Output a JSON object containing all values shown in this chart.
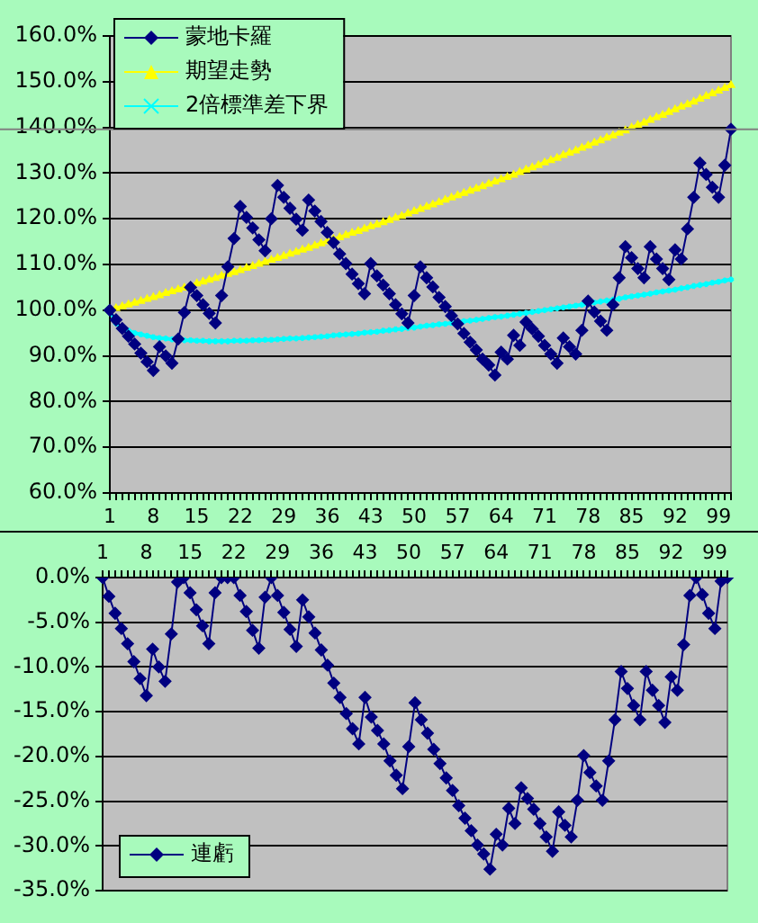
{
  "chart_data": [
    {
      "type": "line",
      "categories": [
        "1",
        null,
        null,
        null,
        null,
        null,
        null,
        "8",
        null,
        null,
        null,
        null,
        null,
        null,
        "15",
        null,
        null,
        null,
        null,
        null,
        null,
        "22",
        null,
        null,
        null,
        null,
        null,
        null,
        "29",
        null,
        null,
        null,
        null,
        null,
        null,
        "36",
        null,
        null,
        null,
        null,
        null,
        null,
        "43",
        null,
        null,
        null,
        null,
        null,
        null,
        "50",
        null,
        null,
        null,
        null,
        null,
        null,
        "57",
        null,
        null,
        null,
        null,
        null,
        null,
        "64",
        null,
        null,
        null,
        null,
        null,
        null,
        "71",
        null,
        null,
        null,
        null,
        null,
        null,
        "78",
        null,
        null,
        null,
        null,
        null,
        null,
        "85",
        null,
        null,
        null,
        null,
        null,
        null,
        "92",
        null,
        null,
        null,
        null,
        null,
        null,
        "99",
        null,
        null
      ],
      "ylim": [
        60,
        160
      ],
      "yticks": [
        {
          "value": 60,
          "label": "60.0%"
        },
        {
          "value": 70,
          "label": "70.0%"
        },
        {
          "value": 80,
          "label": "80.0%"
        },
        {
          "value": 90,
          "label": "90.0%"
        },
        {
          "value": 100,
          "label": "100.0%"
        },
        {
          "value": 110,
          "label": "110.0%"
        },
        {
          "value": 120,
          "label": "120.0%"
        },
        {
          "value": 130,
          "label": "130.0%"
        },
        {
          "value": 140,
          "label": "140.0%"
        },
        {
          "value": 150,
          "label": "150.0%"
        },
        {
          "value": 160,
          "label": "160.0%"
        }
      ],
      "grid": "y",
      "legend": "top left",
      "ref_lines": [
        {
          "axis": "y",
          "value": 139.6,
          "color": "#808080"
        }
      ],
      "series": [
        {
          "name": "蒙地卡羅",
          "color": "#000080",
          "marker": "diamond",
          "values": [
            100,
            97.9,
            96,
            94.3,
            92.6,
            90.6,
            88.7,
            86.8,
            92,
            90,
            88.4,
            93.7,
            99.5,
            105,
            103.2,
            101.2,
            99.3,
            97.2,
            103.2,
            109.5,
            115.7,
            122.7,
            120.3,
            118,
            115.4,
            113,
            120,
            127.3,
            124.7,
            122.3,
            119.9,
            117.5,
            124.1,
            121.7,
            119.4,
            117,
            114.8,
            112.3,
            110.2,
            107.9,
            105.8,
            103.6,
            110.2,
            107.5,
            105.5,
            103.6,
            101.2,
            99.2,
            97.2,
            103.2,
            109.5,
            107.1,
            105.1,
            102.8,
            100.8,
            98.8,
            97,
            94.9,
            93,
            91.3,
            89.3,
            88,
            85.8,
            90.8,
            89.3,
            94.5,
            92.3,
            97.4,
            95.9,
            94.3,
            92.3,
            90.4,
            88.4,
            93.9,
            92,
            90.4,
            95.6,
            102,
            99.6,
            97.6,
            95.6,
            101.2,
            107.1,
            113.9,
            111.5,
            109.1,
            107.1,
            113.9,
            111.2,
            109.1,
            106.7,
            113.2,
            111.2,
            117.8,
            124.7,
            132.2,
            129.7,
            126.9,
            124.7,
            131.7,
            139.6
          ]
        },
        {
          "name": "期望走勢",
          "color": "#ffff00",
          "marker": "triangle",
          "values": [
            100,
            100.4,
            100.8,
            101.2,
            101.6,
            102,
            102.4,
            102.8,
            103.2,
            103.7,
            104.1,
            104.5,
            104.9,
            105.3,
            105.8,
            106.2,
            106.6,
            107,
            107.5,
            107.9,
            108.3,
            108.7,
            109.2,
            109.6,
            110.1,
            110.5,
            111,
            111.4,
            111.8,
            112.3,
            112.7,
            113.2,
            113.6,
            114.1,
            114.6,
            115,
            115.5,
            115.9,
            116.4,
            116.9,
            117.3,
            117.8,
            118.3,
            118.7,
            119.2,
            119.7,
            120.2,
            120.6,
            121.1,
            121.6,
            122.1,
            122.6,
            123.1,
            123.6,
            124.1,
            124.6,
            125.1,
            125.6,
            126.1,
            126.6,
            127.1,
            127.6,
            128.1,
            128.6,
            129.1,
            129.6,
            130.2,
            130.7,
            131.2,
            131.7,
            132.3,
            132.8,
            133.3,
            133.9,
            134.4,
            134.9,
            135.5,
            136,
            136.6,
            137.1,
            137.7,
            138.2,
            138.8,
            139.3,
            139.9,
            140.5,
            141,
            141.6,
            142.2,
            142.7,
            143.3,
            143.9,
            144.5,
            145,
            145.6,
            146.2,
            146.8,
            147.4,
            148,
            148.6,
            149.2
          ]
        },
        {
          "name": "2倍標準差下界",
          "color": "#00ffff",
          "marker": "cross",
          "values": [
            100,
            97.1,
            96.1,
            95.5,
            95,
            94.7,
            94.4,
            94.1,
            93.9,
            93.8,
            93.6,
            93.5,
            93.4,
            93.4,
            93.3,
            93.3,
            93.2,
            93.2,
            93.2,
            93.2,
            93.3,
            93.3,
            93.3,
            93.4,
            93.4,
            93.5,
            93.5,
            93.6,
            93.7,
            93.8,
            93.8,
            93.9,
            94,
            94.1,
            94.2,
            94.3,
            94.5,
            94.6,
            94.7,
            94.8,
            94.9,
            95.1,
            95.2,
            95.3,
            95.5,
            95.6,
            95.8,
            95.9,
            96.1,
            96.2,
            96.4,
            96.6,
            96.7,
            96.9,
            97,
            97.2,
            97.4,
            97.6,
            97.7,
            97.9,
            98.1,
            98.3,
            98.5,
            98.6,
            98.8,
            99,
            99.2,
            99.4,
            99.6,
            99.8,
            100,
            100.2,
            100.4,
            100.6,
            100.8,
            101,
            101.2,
            101.4,
            101.7,
            101.9,
            102.1,
            102.3,
            102.5,
            102.8,
            103,
            103.2,
            103.4,
            103.6,
            103.9,
            104.1,
            104.3,
            104.5,
            104.8,
            105,
            105.3,
            105.5,
            105.7,
            106,
            106.2,
            106.5,
            106.7
          ]
        }
      ]
    },
    {
      "type": "line",
      "categories": [
        "1",
        null,
        null,
        null,
        null,
        null,
        null,
        "8",
        null,
        null,
        null,
        null,
        null,
        null,
        "15",
        null,
        null,
        null,
        null,
        null,
        null,
        "22",
        null,
        null,
        null,
        null,
        null,
        null,
        "29",
        null,
        null,
        null,
        null,
        null,
        null,
        "36",
        null,
        null,
        null,
        null,
        null,
        null,
        "43",
        null,
        null,
        null,
        null,
        null,
        null,
        "50",
        null,
        null,
        null,
        null,
        null,
        null,
        "57",
        null,
        null,
        null,
        null,
        null,
        null,
        "64",
        null,
        null,
        null,
        null,
        null,
        null,
        "71",
        null,
        null,
        null,
        null,
        null,
        null,
        "78",
        null,
        null,
        null,
        null,
        null,
        null,
        "85",
        null,
        null,
        null,
        null,
        null,
        null,
        "92",
        null,
        null,
        null,
        null,
        null,
        null,
        "99",
        null,
        null
      ],
      "ylim": [
        -35,
        0
      ],
      "yticks": [
        {
          "value": -35,
          "label": "-35.0%"
        },
        {
          "value": -30,
          "label": "-30.0%"
        },
        {
          "value": -25,
          "label": "-25.0%"
        },
        {
          "value": -20,
          "label": "-20.0%"
        },
        {
          "value": -15,
          "label": "-15.0%"
        },
        {
          "value": -10,
          "label": "-10.0%"
        },
        {
          "value": -5,
          "label": "-5.0%"
        },
        {
          "value": 0,
          "label": "0.0%"
        }
      ],
      "grid": "y",
      "legend": "bottom left",
      "series": [
        {
          "name": "連虧",
          "color": "#000080",
          "marker": "diamond",
          "values": [
            0,
            -2.1,
            -4,
            -5.7,
            -7.4,
            -9.4,
            -11.3,
            -13.2,
            -8,
            -10,
            -11.6,
            -6.3,
            -0.5,
            0,
            -1.7,
            -3.6,
            -5.4,
            -7.4,
            -1.7,
            0,
            0,
            0,
            -2,
            -3.8,
            -5.9,
            -7.9,
            -2.2,
            0,
            -2,
            -3.9,
            -5.8,
            -7.7,
            -2.5,
            -4.4,
            -6.2,
            -8.1,
            -9.8,
            -11.8,
            -13.4,
            -15.2,
            -16.9,
            -18.6,
            -13.4,
            -15.6,
            -17.1,
            -18.6,
            -20.5,
            -22.1,
            -23.6,
            -18.9,
            -14,
            -15.9,
            -17.4,
            -19.2,
            -20.8,
            -22.4,
            -23.8,
            -25.5,
            -26.9,
            -28.3,
            -29.9,
            -30.9,
            -32.6,
            -28.7,
            -29.9,
            -25.8,
            -27.5,
            -23.5,
            -24.7,
            -25.9,
            -27.5,
            -29,
            -30.6,
            -26.2,
            -27.7,
            -29,
            -24.9,
            -19.9,
            -21.8,
            -23.3,
            -24.9,
            -20.5,
            -15.9,
            -10.5,
            -12.4,
            -14.3,
            -15.9,
            -10.5,
            -12.6,
            -14.3,
            -16.2,
            -11.1,
            -12.6,
            -7.5,
            -2,
            0,
            -1.9,
            -4,
            -5.7,
            -0.4,
            0
          ]
        }
      ]
    }
  ]
}
